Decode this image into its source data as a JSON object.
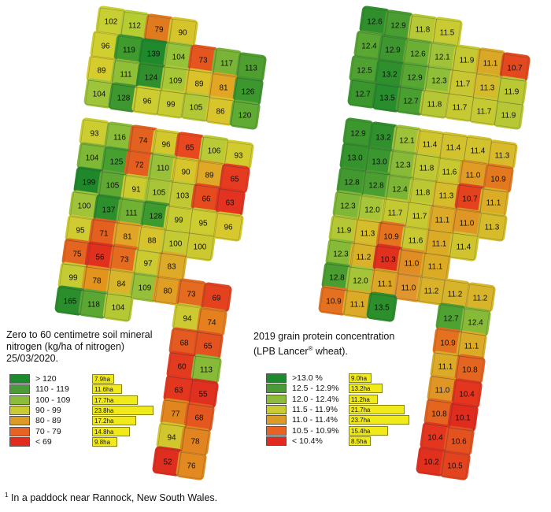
{
  "left_map": {
    "caption_lines": [
      "Zero to 60 centimetre soil mineral",
      "nitrogen (kg/ha of nitrogen)",
      "25/03/2020."
    ],
    "cells": [
      {
        "v": "102",
        "c": "#c8cf33"
      },
      {
        "v": "112",
        "c": "#b5cc33"
      },
      {
        "v": "79",
        "c": "#e07a1f"
      },
      {
        "v": "90",
        "c": "#d5c52b"
      },
      {
        "v": "96",
        "c": "#cfcf30"
      },
      {
        "v": "119",
        "c": "#3f9b2d"
      },
      {
        "v": "139",
        "c": "#1f8a2c"
      },
      {
        "v": "104",
        "c": "#96c23a"
      },
      {
        "v": "73",
        "c": "#e5561f"
      },
      {
        "v": "117",
        "c": "#79b436"
      },
      {
        "v": "113",
        "c": "#4f9e30"
      },
      {
        "v": "89",
        "c": "#d5cc2d"
      },
      {
        "v": "111",
        "c": "#8fbe37"
      },
      {
        "v": "124",
        "c": "#2f8f2c"
      },
      {
        "v": "109",
        "c": "#a8c737"
      },
      {
        "v": "89",
        "c": "#d9c22a"
      },
      {
        "v": "81",
        "c": "#e2a524"
      },
      {
        "v": "126",
        "c": "#3c982e"
      },
      {
        "v": "104",
        "c": "#9ec43a"
      },
      {
        "v": "128",
        "c": "#3f982f"
      },
      {
        "v": "96",
        "c": "#cdcc30"
      },
      {
        "v": "99",
        "c": "#c7cd31"
      },
      {
        "v": "105",
        "c": "#b3c835"
      },
      {
        "v": "86",
        "c": "#d8c42b"
      },
      {
        "v": "120",
        "c": "#5fab33"
      },
      {
        "v": "93",
        "c": "#cbcd31"
      },
      {
        "v": "116",
        "c": "#8abd38"
      },
      {
        "v": "74",
        "c": "#e3621f"
      },
      {
        "v": "96",
        "c": "#d2c82d"
      },
      {
        "v": "65",
        "c": "#e8471f"
      },
      {
        "v": "106",
        "c": "#b9ca35"
      },
      {
        "v": "93",
        "c": "#d1cb2e"
      },
      {
        "v": "104",
        "c": "#7fb736"
      },
      {
        "v": "125",
        "c": "#46a030"
      },
      {
        "v": "72",
        "c": "#e45e20"
      },
      {
        "v": "110",
        "c": "#98c139"
      },
      {
        "v": "90",
        "c": "#d6c62c"
      },
      {
        "v": "89",
        "c": "#dfa826"
      },
      {
        "v": "65",
        "c": "#e63b21"
      },
      {
        "v": "199",
        "c": "#1f882b"
      },
      {
        "v": "105",
        "c": "#5ea833"
      },
      {
        "v": "91",
        "c": "#cbcb30"
      },
      {
        "v": "105",
        "c": "#a8c537"
      },
      {
        "v": "103",
        "c": "#c0c934"
      },
      {
        "v": "66",
        "c": "#e64a1f"
      },
      {
        "v": "63",
        "c": "#e3321f"
      },
      {
        "v": "100",
        "c": "#9fc439"
      },
      {
        "v": "137",
        "c": "#2c8f2c"
      },
      {
        "v": "111",
        "c": "#71b235"
      },
      {
        "v": "128",
        "c": "#3c9a2f"
      },
      {
        "v": "99",
        "c": "#c6cb32"
      },
      {
        "v": "95",
        "c": "#cdcc30"
      },
      {
        "v": "96",
        "c": "#d6c82d"
      },
      {
        "v": "95",
        "c": "#cfcb30"
      },
      {
        "v": "71",
        "c": "#e4601f"
      },
      {
        "v": "81",
        "c": "#e0a526"
      },
      {
        "v": "88",
        "c": "#d7c32b"
      },
      {
        "v": "100",
        "c": "#c3ca33"
      },
      {
        "v": "100",
        "c": "#ccc930"
      },
      {
        "v": "75",
        "c": "#e4651f"
      },
      {
        "v": "56",
        "c": "#e2301f"
      },
      {
        "v": "73",
        "c": "#e56b1f"
      },
      {
        "v": "97",
        "c": "#cbca31"
      },
      {
        "v": "83",
        "c": "#ddab27"
      },
      {
        "v": "99",
        "c": "#c5cb32"
      },
      {
        "v": "78",
        "c": "#e2941f"
      },
      {
        "v": "84",
        "c": "#d8b52a"
      },
      {
        "v": "109",
        "c": "#96c039"
      },
      {
        "v": "80",
        "c": "#e19e24"
      },
      {
        "v": "73",
        "c": "#e46b1f"
      },
      {
        "v": "69",
        "c": "#e4421f"
      },
      {
        "v": "165",
        "c": "#2b8e2c"
      },
      {
        "v": "118",
        "c": "#5aa833"
      },
      {
        "v": "104",
        "c": "#b4c834"
      },
      {
        "v": "94",
        "c": "#cdca31"
      },
      {
        "v": "74",
        "c": "#e6801f"
      },
      {
        "v": "68",
        "c": "#e45a20"
      },
      {
        "v": "65",
        "c": "#e4521f"
      },
      {
        "v": "60",
        "c": "#e33b1f"
      },
      {
        "v": "113",
        "c": "#86ba37"
      },
      {
        "v": "63",
        "c": "#e3361f"
      },
      {
        "v": "55",
        "c": "#e0301f"
      },
      {
        "v": "77",
        "c": "#e1861f"
      },
      {
        "v": "68",
        "c": "#e45820"
      },
      {
        "v": "94",
        "c": "#d1c62d"
      },
      {
        "v": "78",
        "c": "#e2841f"
      },
      {
        "v": "52",
        "c": "#df2e1f"
      },
      {
        "v": "76",
        "c": "#e2891f"
      }
    ],
    "legend": [
      {
        "range": "> 120",
        "color": "#1d8a2e",
        "area": "7.9ha",
        "area_pct": 0.099
      },
      {
        "range": "110 - 119",
        "color": "#4a9b35",
        "area": "11.6ha",
        "area_pct": 0.146
      },
      {
        "range": "100 - 109",
        "color": "#8dbb3a",
        "area": "17.7ha",
        "area_pct": 0.223
      },
      {
        "range": "90 - 99",
        "color": "#c9cb31",
        "area": "23.8ha",
        "area_pct": 0.3
      },
      {
        "range": "80 - 89",
        "color": "#dc9b25",
        "area": "17.2ha",
        "area_pct": 0.217
      },
      {
        "range": "70 - 79",
        "color": "#e86221",
        "area": "14.8ha",
        "area_pct": 0.186
      },
      {
        "range": "< 69",
        "color": "#e12a20",
        "area": "9.8ha",
        "area_pct": 0.123
      }
    ]
  },
  "right_map": {
    "caption_lines": [
      "2019 grain protein concentration",
      "(LPB Lancer",
      "®",
      " wheat)."
    ],
    "cells": [
      {
        "v": "12.6",
        "c": "#2f8f2c"
      },
      {
        "v": "12.9",
        "c": "#4a9e31"
      },
      {
        "v": "11.8",
        "c": "#b5c835"
      },
      {
        "v": "11.5",
        "c": "#c8cb31"
      },
      {
        "v": "12.4",
        "c": "#5aa733"
      },
      {
        "v": "12.9",
        "c": "#3d962e"
      },
      {
        "v": "12.6",
        "c": "#6bb035"
      },
      {
        "v": "12.1",
        "c": "#9ec23a"
      },
      {
        "v": "11.9",
        "c": "#c4c932"
      },
      {
        "v": "11.1",
        "c": "#d9a826"
      },
      {
        "v": "10.7",
        "c": "#e3481f"
      },
      {
        "v": "12.5",
        "c": "#4fa231"
      },
      {
        "v": "13.2",
        "c": "#2e8f2c"
      },
      {
        "v": "12.9",
        "c": "#58a733"
      },
      {
        "v": "12.3",
        "c": "#8fbe38"
      },
      {
        "v": "11.7",
        "c": "#c8c732"
      },
      {
        "v": "11.3",
        "c": "#d4bb2c"
      },
      {
        "v": "11.9",
        "c": "#bac834"
      },
      {
        "v": "12.7",
        "c": "#3b962e"
      },
      {
        "v": "13.5",
        "c": "#288d2c"
      },
      {
        "v": "12.7",
        "c": "#4a9f31"
      },
      {
        "v": "11.8",
        "c": "#b6c735"
      },
      {
        "v": "11.7",
        "c": "#c6c932"
      },
      {
        "v": "11.7",
        "c": "#c5c932"
      },
      {
        "v": "11.9",
        "c": "#b7c834"
      },
      {
        "v": "12.9",
        "c": "#3c982e"
      },
      {
        "v": "13.2",
        "c": "#2f902d"
      },
      {
        "v": "12.1",
        "c": "#9ec23a"
      },
      {
        "v": "11.4",
        "c": "#cfc52e"
      },
      {
        "v": "11.4",
        "c": "#d2c22d"
      },
      {
        "v": "11.4",
        "c": "#d2c22d"
      },
      {
        "v": "11.3",
        "c": "#d8ba2a"
      },
      {
        "v": "13.0",
        "c": "#34932d"
      },
      {
        "v": "13.0",
        "c": "#3a962e"
      },
      {
        "v": "12.3",
        "c": "#86ba37"
      },
      {
        "v": "11.8",
        "c": "#bec833"
      },
      {
        "v": "11.6",
        "c": "#c8c830"
      },
      {
        "v": "11.0",
        "c": "#e09c24"
      },
      {
        "v": "10.9",
        "c": "#e3781f"
      },
      {
        "v": "12.8",
        "c": "#42992f"
      },
      {
        "v": "12.8",
        "c": "#4b9f31"
      },
      {
        "v": "12.4",
        "c": "#7db636"
      },
      {
        "v": "11.8",
        "c": "#bbc834"
      },
      {
        "v": "11.3",
        "c": "#d6bc2b"
      },
      {
        "v": "10.7",
        "c": "#e4421f"
      },
      {
        "v": "11.1",
        "c": "#dbad27"
      },
      {
        "v": "12.3",
        "c": "#7fb736"
      },
      {
        "v": "12.0",
        "c": "#a6c538"
      },
      {
        "v": "11.7",
        "c": "#c4c932"
      },
      {
        "v": "11.7",
        "c": "#c6c932"
      },
      {
        "v": "11.1",
        "c": "#dcaa26"
      },
      {
        "v": "11.0",
        "c": "#e09624"
      },
      {
        "v": "11.3",
        "c": "#d6bc2b"
      },
      {
        "v": "11.9",
        "c": "#b4c735"
      },
      {
        "v": "11.3",
        "c": "#d5bd2c"
      },
      {
        "v": "10.9",
        "c": "#e4721f"
      },
      {
        "v": "11.6",
        "c": "#c8c831"
      },
      {
        "v": "11.1",
        "c": "#dcab26"
      },
      {
        "v": "11.4",
        "c": "#d0c42e"
      },
      {
        "v": "12.3",
        "c": "#86ba37"
      },
      {
        "v": "11.2",
        "c": "#d9b229"
      },
      {
        "v": "10.3",
        "c": "#e2301f"
      },
      {
        "v": "11.0",
        "c": "#e08d24"
      },
      {
        "v": "11.1",
        "c": "#dcab26"
      },
      {
        "v": "12.8",
        "c": "#4a9e31"
      },
      {
        "v": "12.0",
        "c": "#a5c438"
      },
      {
        "v": "11.1",
        "c": "#dca726"
      },
      {
        "v": "11.0",
        "c": "#e0952f"
      },
      {
        "v": "11.2",
        "c": "#d9b229"
      },
      {
        "v": "11.2",
        "c": "#d8b42a"
      },
      {
        "v": "11.2",
        "c": "#d8b42a"
      },
      {
        "v": "10.9",
        "c": "#e4711f"
      },
      {
        "v": "11.1",
        "c": "#dbab27"
      },
      {
        "v": "13.5",
        "c": "#2b8f2c"
      },
      {
        "v": "12.7",
        "c": "#4fa231"
      },
      {
        "v": "12.4",
        "c": "#86ba37"
      },
      {
        "v": "10.9",
        "c": "#e4711f"
      },
      {
        "v": "11.1",
        "c": "#dbab27"
      },
      {
        "v": "11.1",
        "c": "#dbab27"
      },
      {
        "v": "10.8",
        "c": "#e4651f"
      },
      {
        "v": "11.0",
        "c": "#e09624"
      },
      {
        "v": "10.4",
        "c": "#e4361f"
      },
      {
        "v": "10.8",
        "c": "#e4651f"
      },
      {
        "v": "10.1",
        "c": "#e02c1f"
      },
      {
        "v": "10.4",
        "c": "#e4361f"
      },
      {
        "v": "10.6",
        "c": "#e4521f"
      },
      {
        "v": "10.2",
        "c": "#e2301f"
      },
      {
        "v": "10.5",
        "c": "#e4431f"
      },
      {
        "v": "10.3",
        "c": "#e2301f"
      },
      {
        "v": "10.0",
        "c": "#e02a1f"
      }
    ],
    "legend": [
      {
        "range": ">13.0 %",
        "color": "#1d8a2e",
        "area": "9.0ha",
        "area_pct": 0.113
      },
      {
        "range": "12.5 - 12.9%",
        "color": "#4a9b35",
        "area": "13.2ha",
        "area_pct": 0.166
      },
      {
        "range": "12.0 - 12.4%",
        "color": "#8dbb3a",
        "area": "11.2ha",
        "area_pct": 0.141
      },
      {
        "range": "11.5 - 11.9%",
        "color": "#c9cb31",
        "area": "21.7ha",
        "area_pct": 0.273
      },
      {
        "range": "11.0 - 11.4%",
        "color": "#dc9b25",
        "area": "23.7ha",
        "area_pct": 0.298
      },
      {
        "range": "10.5 - 10.9%",
        "color": "#e86221",
        "area": "15.4ha",
        "area_pct": 0.194
      },
      {
        "range": "< 10.4%",
        "color": "#e12a20",
        "area": "8.5ha",
        "area_pct": 0.107
      }
    ]
  },
  "footnote": {
    "marker": "1",
    "text": "In a paddock near Rannock, New South Wales."
  }
}
